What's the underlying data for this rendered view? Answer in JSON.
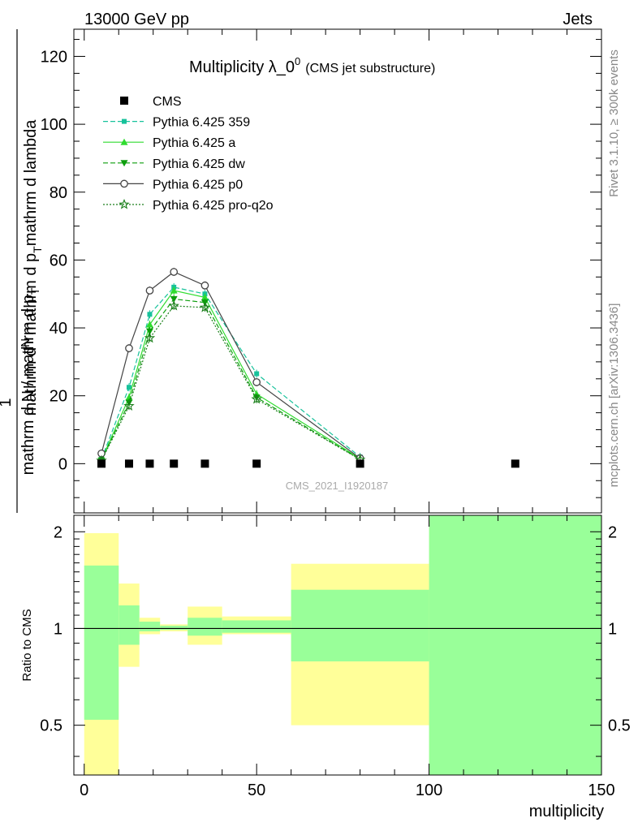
{
  "header": {
    "left": "13000 GeV pp",
    "right": "Jets"
  },
  "side_text": {
    "rivet": "Rivet 3.1.10, ≥ 300k events",
    "mcplots": "mcplots.cern.ch [arXiv:1306.3436]"
  },
  "watermark": "CMS_2021_I1920187",
  "chart_data": [
    {
      "type": "line",
      "title_main": "Multiplicity λ_0",
      "title_sup": "0",
      "title_sub": "(CMS jet substructure)",
      "ylabel": {
        "numer_a": "mathrm d",
        "numer_b": "N",
        "numer_c": "mathrm d p",
        "numer_d": "T",
        "numer_e": "mathrm d lambda",
        "one": "1",
        "denom_a": "mathrm d N / mathrm d p",
        "denom_b": "T"
      },
      "xlim": [
        -3,
        150
      ],
      "ylim": [
        -14.5,
        128
      ],
      "yticks": [
        0,
        20,
        40,
        60,
        80,
        100,
        120
      ],
      "legend_position": "top-left",
      "series": [
        {
          "name": "CMS",
          "style": "data",
          "color": "#000000",
          "x": [
            5,
            13,
            19,
            26,
            35,
            50,
            80,
            125
          ],
          "y": [
            0,
            0,
            0,
            0,
            0,
            0,
            0,
            0
          ]
        },
        {
          "name": "Pythia 6.425 359",
          "style": "dashed",
          "marker": "square",
          "color": "#17c29b",
          "x": [
            5,
            13,
            19,
            26,
            35,
            50,
            80
          ],
          "y": [
            1.3,
            22.5,
            44,
            52,
            50,
            26.5,
            2
          ]
        },
        {
          "name": "Pythia 6.425 a",
          "style": "solid",
          "marker": "triangle-up",
          "color": "#2fdc2f",
          "x": [
            5,
            13,
            19,
            26,
            35,
            50,
            80
          ],
          "y": [
            1.1,
            19.5,
            41,
            51,
            49,
            20.5,
            1.5
          ]
        },
        {
          "name": "Pythia 6.425 dw",
          "style": "dashed",
          "marker": "triangle-down",
          "color": "#0d9e0d",
          "x": [
            5,
            13,
            19,
            26,
            35,
            50,
            80
          ],
          "y": [
            1,
            18,
            39,
            48.5,
            47.5,
            19.5,
            1.3
          ]
        },
        {
          "name": "Pythia 6.425 p0",
          "style": "solid",
          "marker": "circle-open",
          "color": "#444444",
          "x": [
            5,
            13,
            19,
            26,
            35,
            50,
            80
          ],
          "y": [
            3,
            34,
            51,
            56.5,
            52.5,
            24,
            1.6
          ]
        },
        {
          "name": "Pythia 6.425 pro-q2o",
          "style": "dotted",
          "marker": "star-open",
          "color": "#1a7f1a",
          "x": [
            5,
            13,
            19,
            26,
            35,
            50,
            80
          ],
          "y": [
            0.9,
            17,
            37,
            46.5,
            46,
            19,
            1.2
          ]
        }
      ]
    },
    {
      "type": "area",
      "ylabel": "Ratio to CMS",
      "xlabel": "multiplicity",
      "xlim": [
        -3,
        150
      ],
      "ylim": [
        0.35,
        2.25
      ],
      "yticks": [
        0.5,
        1,
        2
      ],
      "xticks": [
        0,
        50,
        100,
        150
      ],
      "reference_line": 1,
      "bands": [
        {
          "x0": 0,
          "x1": 10,
          "yellow": [
            0.35,
            1.98
          ],
          "green": [
            0.52,
            1.57
          ]
        },
        {
          "x0": 10,
          "x1": 16,
          "yellow": [
            0.76,
            1.38
          ],
          "green": [
            0.89,
            1.18
          ]
        },
        {
          "x0": 16,
          "x1": 22,
          "yellow": [
            0.96,
            1.08
          ],
          "green": [
            0.98,
            1.05
          ]
        },
        {
          "x0": 22,
          "x1": 30,
          "yellow": [
            0.98,
            1.03
          ],
          "green": [
            0.99,
            1.02
          ]
        },
        {
          "x0": 30,
          "x1": 40,
          "yellow": [
            0.89,
            1.17
          ],
          "green": [
            0.95,
            1.08
          ]
        },
        {
          "x0": 40,
          "x1": 60,
          "yellow": [
            0.96,
            1.09
          ],
          "green": [
            0.97,
            1.06
          ]
        },
        {
          "x0": 60,
          "x1": 100,
          "yellow": [
            0.5,
            1.59
          ],
          "green": [
            0.79,
            1.32
          ]
        },
        {
          "x0": 100,
          "x1": 150,
          "yellow": [
            0.35,
            2.25
          ],
          "green": [
            0.35,
            2.25
          ]
        }
      ]
    }
  ]
}
